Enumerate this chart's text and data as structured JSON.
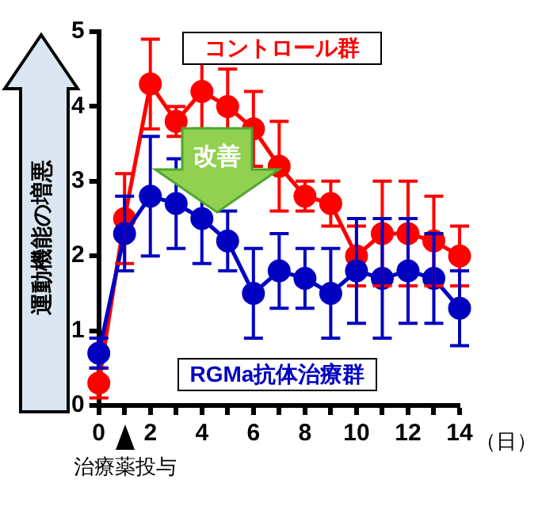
{
  "chart_data": {
    "type": "line",
    "ylabel": "運動機能の増悪",
    "xlabel": "（日）",
    "x": [
      0,
      1,
      2,
      3,
      4,
      5,
      6,
      7,
      8,
      9,
      10,
      11,
      12,
      13,
      14
    ],
    "series": [
      {
        "name": "コントロール群",
        "color": "#ff0000",
        "values": [
          0.3,
          2.5,
          4.3,
          3.8,
          4.2,
          4.0,
          3.7,
          3.2,
          2.8,
          2.7,
          2.0,
          2.3,
          2.3,
          2.2,
          2.0
        ],
        "errors": [
          0.2,
          0.6,
          0.6,
          0.2,
          0.5,
          0.5,
          0.5,
          0.6,
          0.2,
          0.3,
          0.4,
          0.7,
          0.7,
          0.6,
          0.4
        ]
      },
      {
        "name": "RGMa抗体治療群",
        "color": "#0000c0",
        "values": [
          0.7,
          2.3,
          2.8,
          2.7,
          2.5,
          2.2,
          1.5,
          1.8,
          1.7,
          1.5,
          1.8,
          1.7,
          1.8,
          1.7,
          1.3
        ],
        "errors": [
          0.2,
          0.5,
          0.8,
          0.6,
          0.6,
          0.4,
          0.6,
          0.5,
          0.4,
          0.6,
          0.7,
          0.8,
          0.7,
          0.6,
          0.5
        ]
      }
    ],
    "xlim": [
      0,
      14
    ],
    "xticks": [
      0,
      {
        "value": 1,
        "label": null
      },
      2,
      {
        "value": 3,
        "label": null
      },
      4,
      {
        "value": 5,
        "label": null
      },
      6,
      {
        "value": 7,
        "label": null
      },
      8,
      {
        "value": 9,
        "label": null
      },
      10,
      {
        "value": 11,
        "label": null
      },
      12,
      {
        "value": 13,
        "label": null
      },
      14
    ],
    "ylim": [
      0,
      5
    ],
    "yticks": [
      0,
      1,
      2,
      3,
      4,
      5
    ],
    "annotations": [
      "改善",
      "治療薬投与"
    ],
    "grid": false,
    "marker": "circle",
    "line_style": "solid"
  }
}
